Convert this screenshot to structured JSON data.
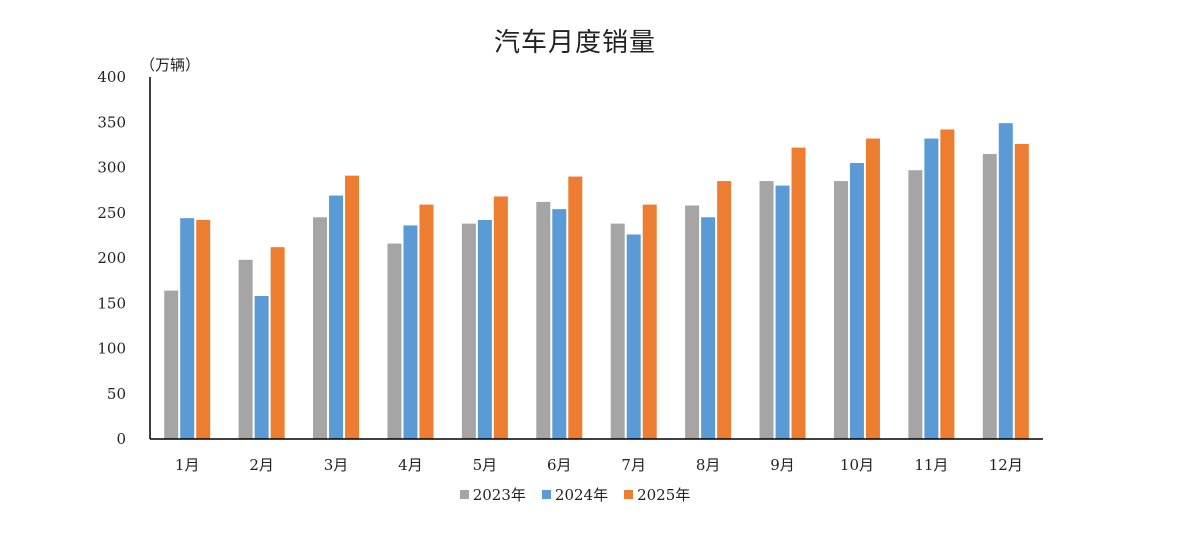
{
  "chart_data": {
    "type": "bar",
    "title": "汽车月度销量",
    "unit_label": "（万辆）",
    "categories": [
      "1月",
      "2月",
      "3月",
      "4月",
      "5月",
      "6月",
      "7月",
      "8月",
      "9月",
      "10月",
      "11月",
      "12月"
    ],
    "series": [
      {
        "name": "2023年",
        "color": "#a5a5a5",
        "values": [
          164,
          198,
          245,
          216,
          238,
          262,
          238,
          258,
          285,
          285,
          297,
          315
        ]
      },
      {
        "name": "2024年",
        "color": "#5b9bd5",
        "values": [
          244,
          158,
          269,
          236,
          242,
          254,
          226,
          245,
          280,
          305,
          332,
          349
        ]
      },
      {
        "name": "2025年",
        "color": "#ed7d31",
        "values": [
          242,
          212,
          291,
          259,
          268,
          290,
          259,
          285,
          322,
          332,
          342,
          326
        ]
      }
    ],
    "ylim": [
      0,
      400
    ],
    "yticks": [
      0,
      50,
      100,
      150,
      200,
      250,
      300,
      350,
      400
    ],
    "legend_position": "bottom",
    "grid": false
  }
}
